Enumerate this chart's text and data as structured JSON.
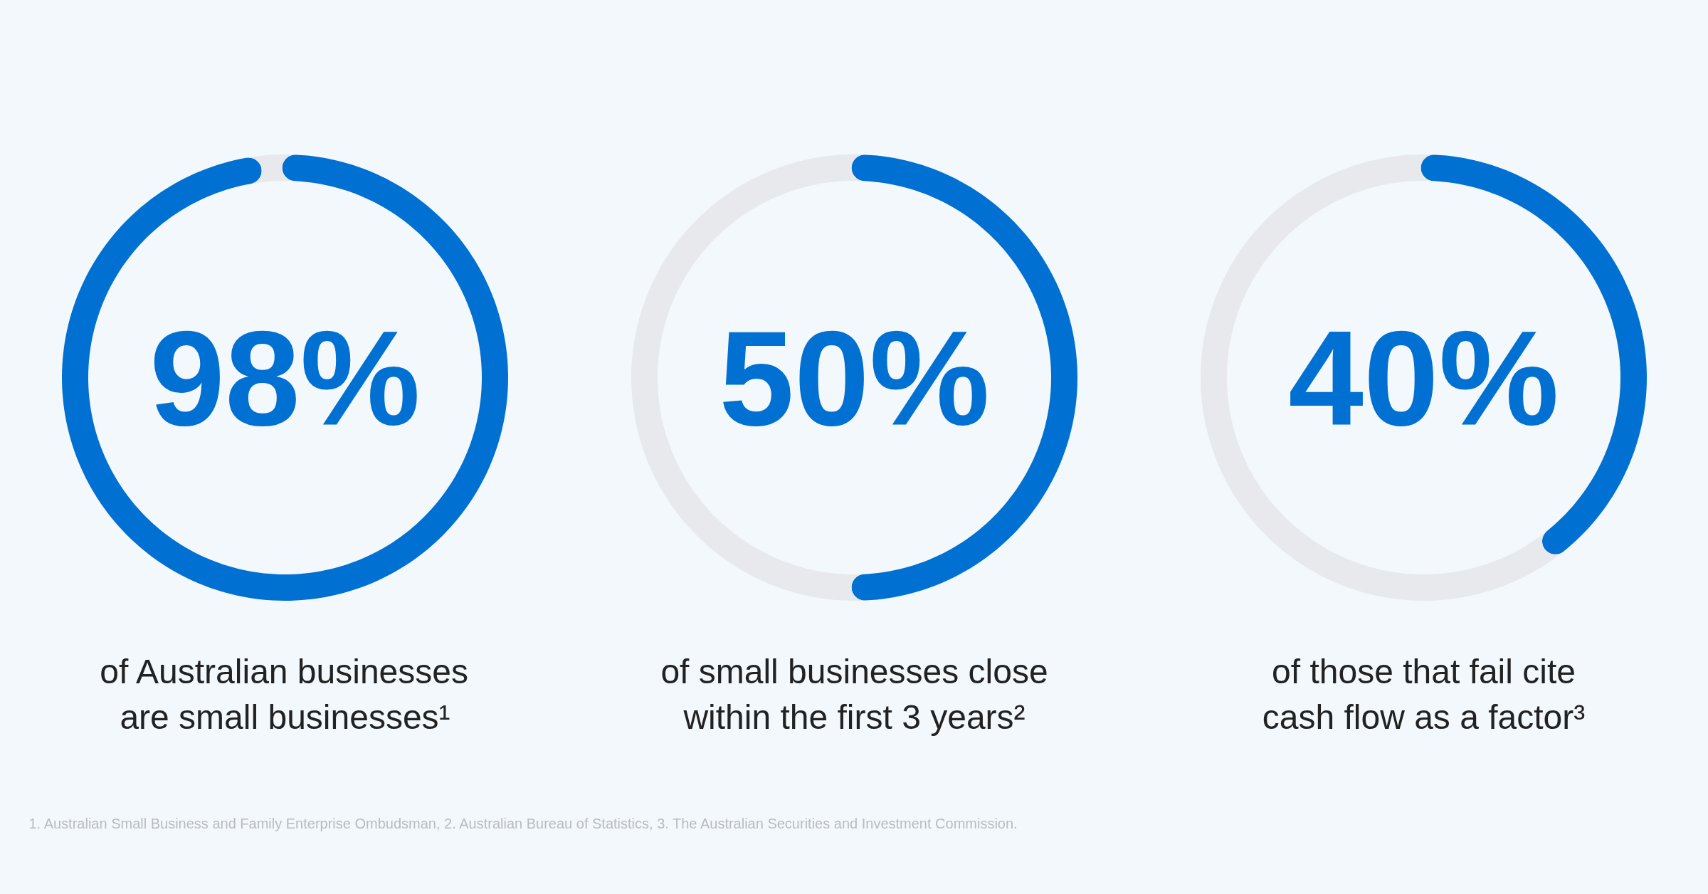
{
  "chart_data": [
    {
      "type": "donut",
      "categories": [
        null,
        null
      ],
      "values": [
        98,
        2
      ],
      "colors": [
        "#0070d2",
        "#e8e9ec"
      ],
      "value_labels": [
        "98%",
        null
      ],
      "subtitle": "of Australian businesses are small businesses¹",
      "annotations": [
        "1. Australian Small Business and Family Enterprise Ombudsman, 2. Australian Bureau of Statistics, 3. The Australian Securities and Investment Commission."
      ]
    },
    {
      "type": "donut",
      "categories": [
        null,
        null
      ],
      "values": [
        50,
        50
      ],
      "colors": [
        "#0070d2",
        "#e8e9ec"
      ],
      "value_labels": [
        "50%",
        null
      ],
      "subtitle": "of small businesses close within the first 3 years²"
    },
    {
      "type": "donut",
      "categories": [
        null,
        null
      ],
      "values": [
        40,
        60
      ],
      "colors": [
        "#0070d2",
        "#e8e9ec"
      ],
      "value_labels": [
        "40%",
        null
      ],
      "subtitle": "of those that fail cite cash flow as a factor³"
    }
  ]
}
